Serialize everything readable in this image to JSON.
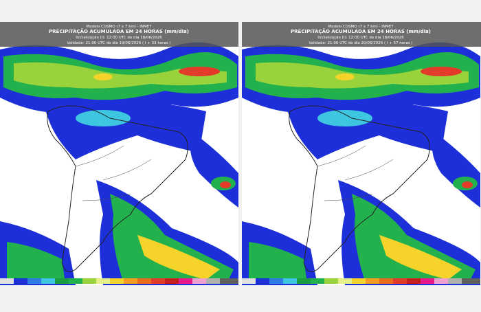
{
  "panels": [
    {
      "model": "Modelo COSMO (7 x 7 km) - INMET",
      "title": "PRECIPITAÇÃO ACUMULADA EM 24 HORAS (mm/dia)",
      "init": "Inicialização (I): 12:00 UTC do dia 18/06/2026",
      "valid": "Validade: 21:00 UTC do dia 19/06/2026 ( I + 33 horas )"
    },
    {
      "model": "Modelo COSMO (7 x 7 km) - INMET",
      "title": "PRECIPITAÇÃO ACUMULADA EM 24 HORAS (mm/dia)",
      "init": "Inicialização (I): 12:00 UTC do dia 18/06/2026",
      "valid": "Validade: 21:00 UTC do dia 20/06/2026 ( I + 57 horas )"
    }
  ]
}
